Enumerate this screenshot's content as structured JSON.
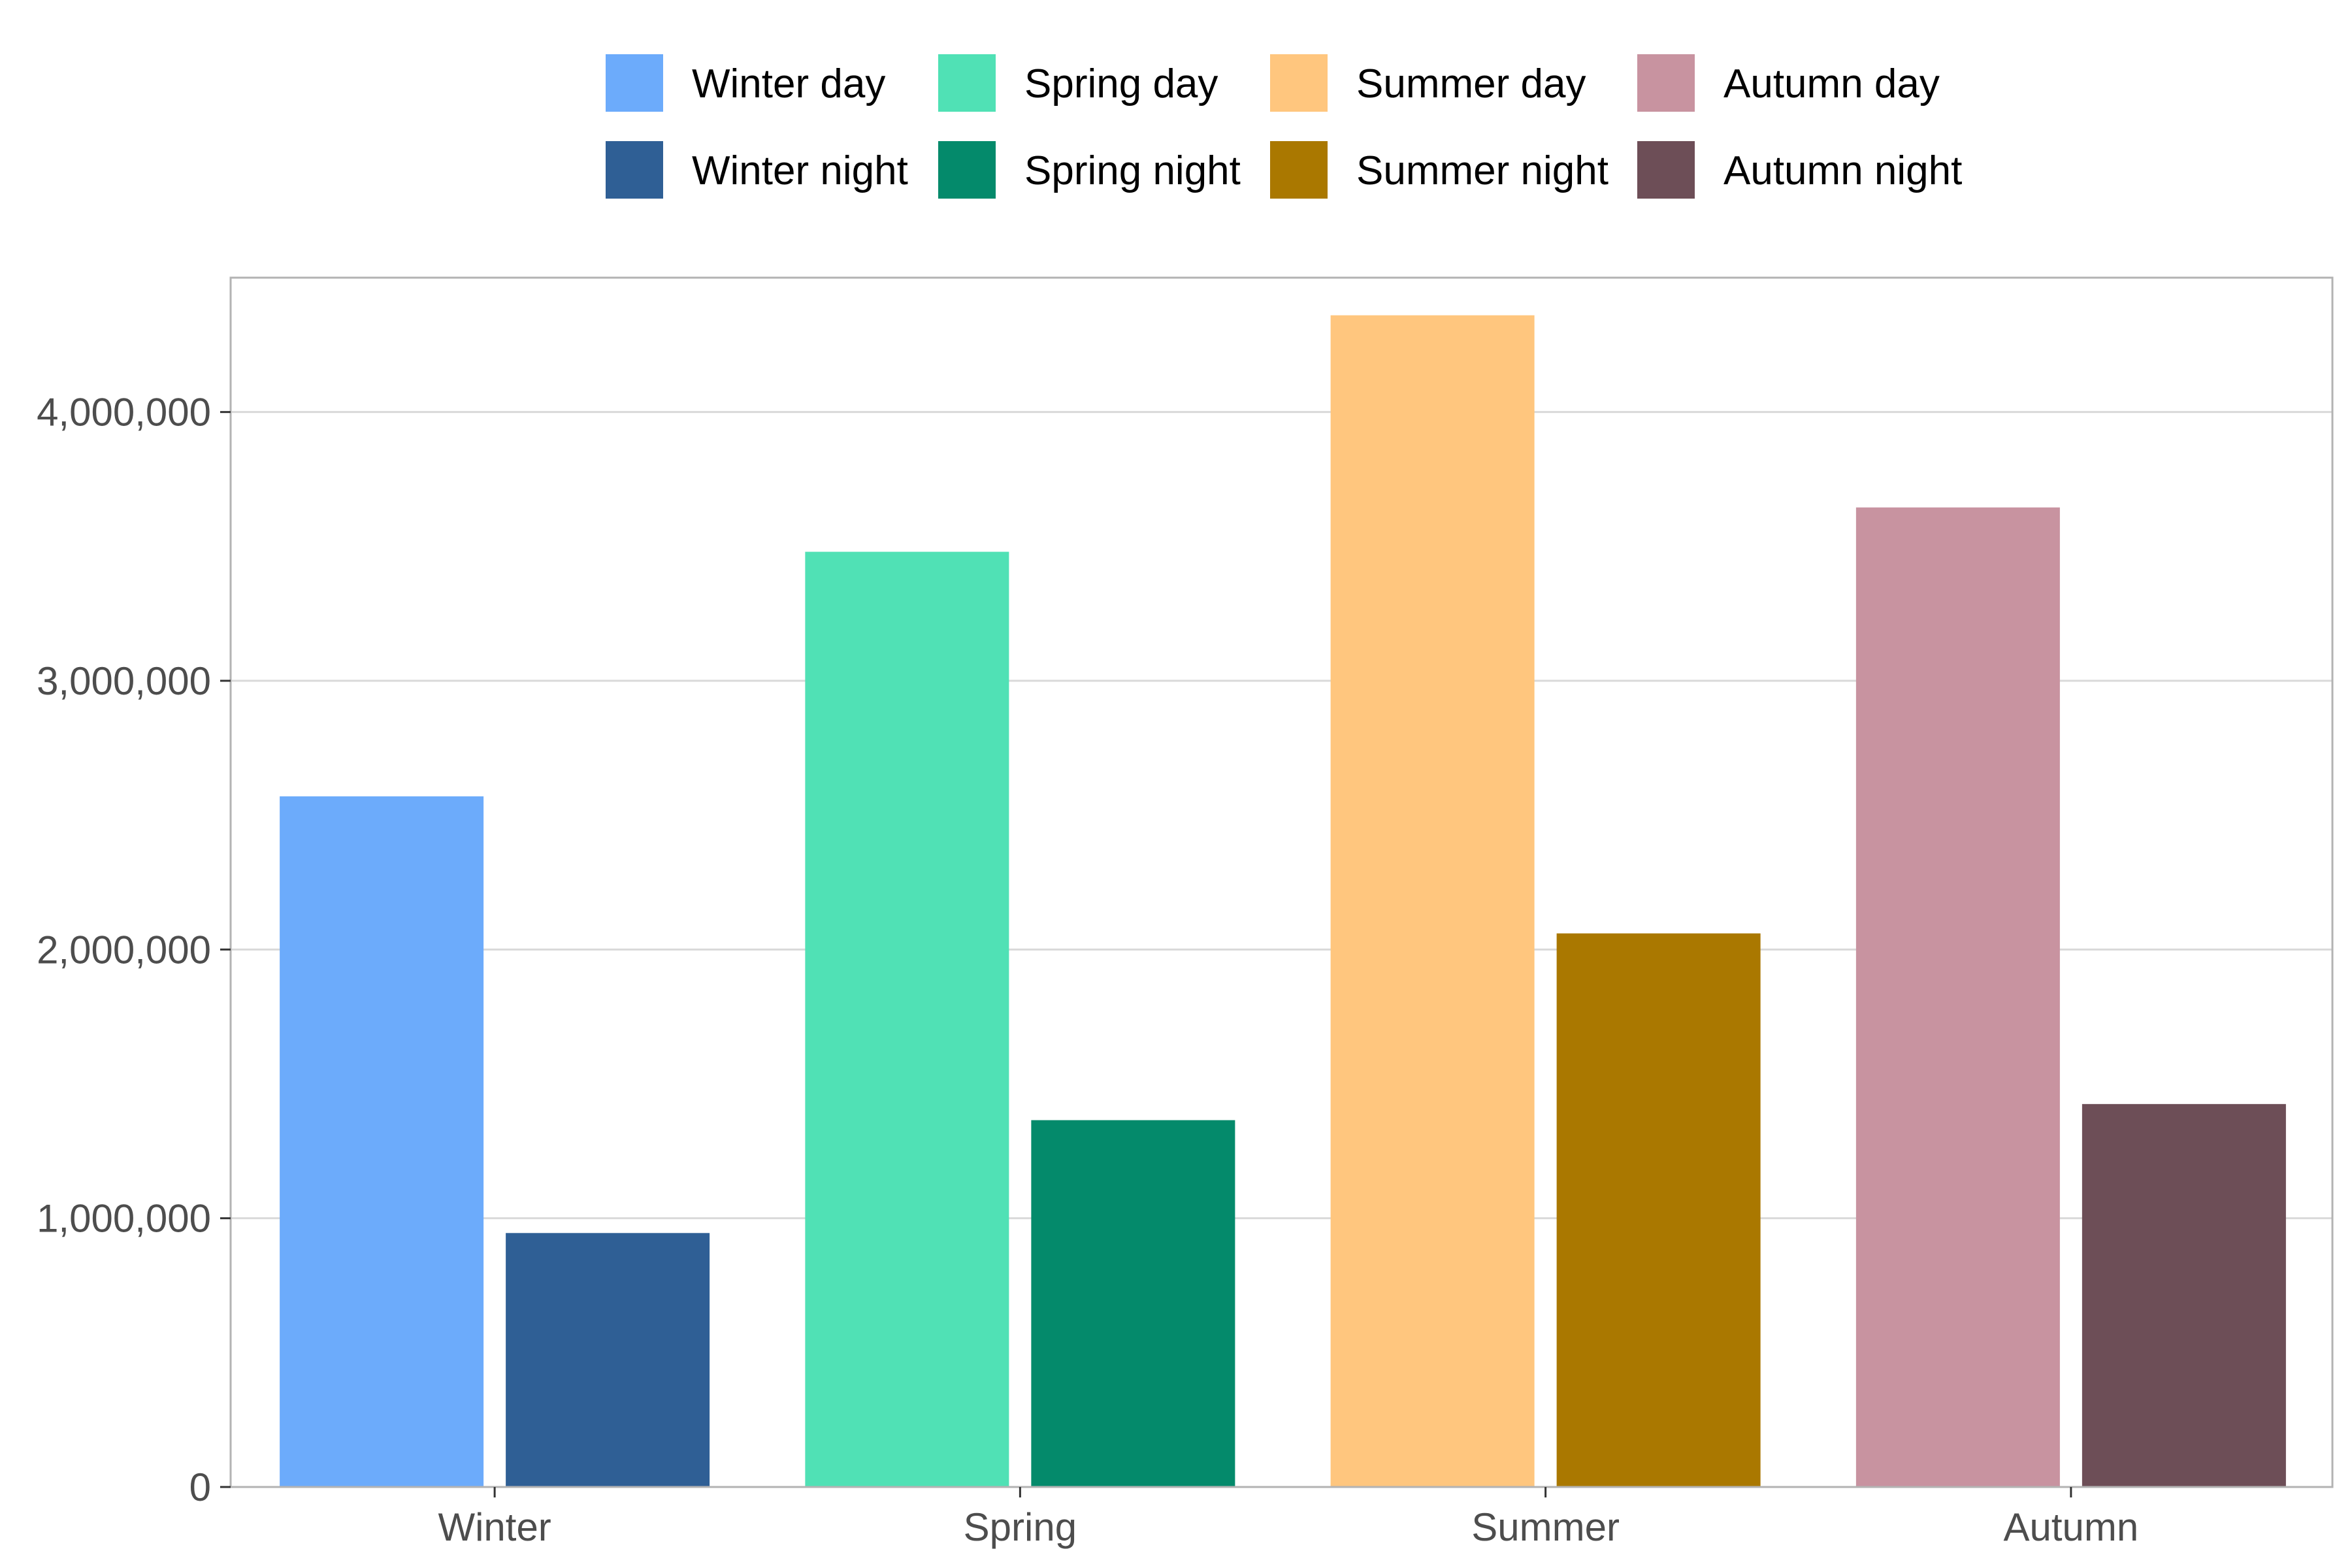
{
  "chart_data": {
    "type": "bar",
    "categories": [
      "Winter",
      "Spring",
      "Summer",
      "Autumn"
    ],
    "series": [
      {
        "name": "Day",
        "values": [
          2570000,
          3480000,
          4360000,
          3645000
        ]
      },
      {
        "name": "Night",
        "values": [
          945000,
          1365000,
          2060000,
          1425000
        ]
      }
    ],
    "bar_colors": [
      [
        "#6cabfb",
        "#2f5f95"
      ],
      [
        "#50e1b5",
        "#048a6b"
      ],
      [
        "#ffc67e",
        "#aa7800"
      ],
      [
        "#c893a0",
        "#6d4e57"
      ]
    ],
    "legend": {
      "placement": "top",
      "entries": [
        {
          "label": "Winter day",
          "color": "#6cabfb"
        },
        {
          "label": "Spring day",
          "color": "#50e1b5"
        },
        {
          "label": "Summer day",
          "color": "#ffc67e"
        },
        {
          "label": "Autumn day",
          "color": "#c893a0"
        },
        {
          "label": "Winter night",
          "color": "#2f5f95"
        },
        {
          "label": "Spring night",
          "color": "#048a6b"
        },
        {
          "label": "Summer night",
          "color": "#aa7800"
        },
        {
          "label": "Autumn night",
          "color": "#6d4e57"
        }
      ]
    },
    "y_ticks": [
      0,
      1000000,
      2000000,
      3000000,
      4000000
    ],
    "y_tick_labels": [
      "0",
      "1,000,000",
      "2,000,000",
      "3,000,000",
      "4,000,000"
    ],
    "ylim": [
      0,
      4500000
    ],
    "grid": true,
    "title": "",
    "xlabel": "",
    "ylabel": ""
  }
}
